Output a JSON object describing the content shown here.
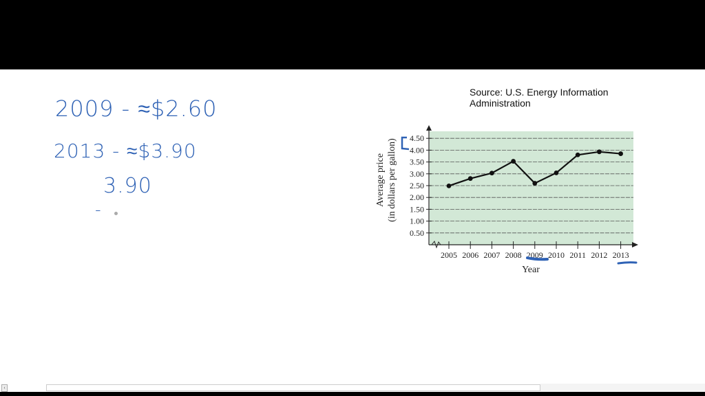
{
  "notes": {
    "line1": "2009 - ≈$2.60",
    "line2": "2013 - ≈$3.90",
    "line3": "3.90",
    "line4": "-"
  },
  "source": {
    "line1": "Source: U.S. Energy Information",
    "line2": "Administration"
  },
  "annotation_color": "#2f62b5",
  "chart_data": {
    "type": "line",
    "title": "",
    "source": "Source: U.S. Energy Information Administration",
    "xlabel": "Year",
    "ylabel": "Average price (in dollars per gallon)",
    "ylabel_line1": "Average price",
    "ylabel_line2": "(in dollars per gallon)",
    "categories": [
      "2005",
      "2006",
      "2007",
      "2008",
      "2009",
      "2010",
      "2011",
      "2012",
      "2013"
    ],
    "values": [
      2.49,
      2.8,
      3.03,
      3.53,
      2.6,
      3.04,
      3.8,
      3.93,
      3.85
    ],
    "yticks": [
      "0.50",
      "1.00",
      "1.50",
      "2.00",
      "2.50",
      "3.00",
      "3.50",
      "4.00",
      "4.50"
    ],
    "ylim": [
      0,
      4.75
    ],
    "grid": true,
    "background_color": "#d2e8d6",
    "line_color": "#111111",
    "legend": "none",
    "annotations": [
      "underline under 2009",
      "underline under 2013",
      "bracket between 4.00 and 4.50"
    ]
  }
}
